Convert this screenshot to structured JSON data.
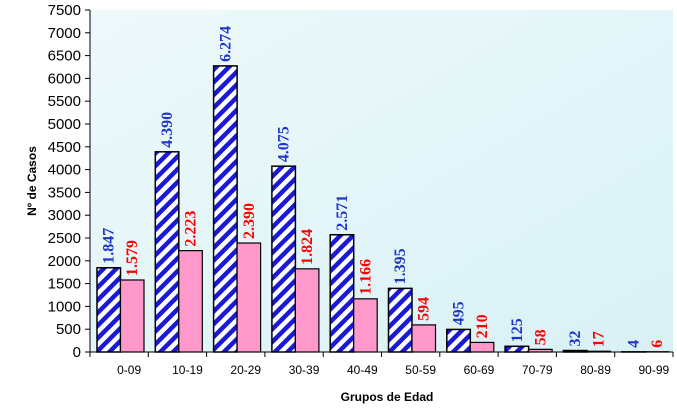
{
  "chart_data": {
    "type": "bar",
    "title": "",
    "xlabel": "Grupos de Edad",
    "ylabel": "Nº de Casos",
    "ylim": [
      0,
      7500
    ],
    "y_tick_step": 500,
    "grid": false,
    "legend": "none",
    "categories": [
      "0-09",
      "10-19",
      "20-29",
      "30-39",
      "40-49",
      "50-59",
      "60-69",
      "70-79",
      "80-89",
      "90-99"
    ],
    "series": [
      {
        "values": [
          1847,
          4390,
          6274,
          4075,
          2571,
          1395,
          495,
          125,
          32,
          4
        ],
        "labels": [
          "1.847",
          "4.390",
          "6.274",
          "4.075",
          "2.571",
          "1.395",
          "495",
          "125",
          "32",
          "4"
        ],
        "fill": "hatched blue/white diagonal stripes",
        "color": "#0000ff",
        "label_color": "#1f35c8"
      },
      {
        "values": [
          1579,
          2223,
          2390,
          1824,
          1166,
          594,
          210,
          58,
          17,
          6
        ],
        "labels": [
          "1.579",
          "2.223",
          "2.390",
          "1.824",
          "1.166",
          "594",
          "210",
          "58",
          "17",
          "6"
        ],
        "fill": "solid pink",
        "color": "#ff99cc",
        "label_color": "#ff0000"
      }
    ],
    "plot_background": "#e8f7fa"
  }
}
